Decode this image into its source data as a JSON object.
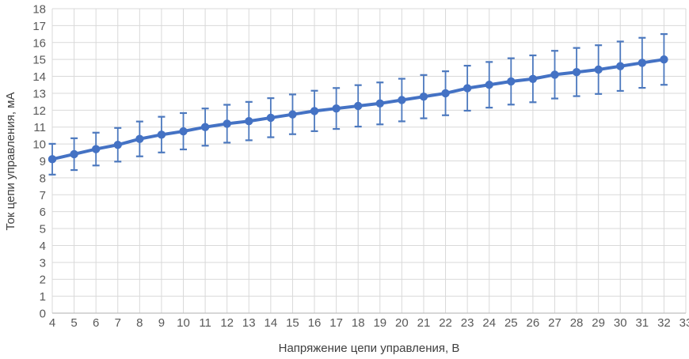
{
  "chart_data": {
    "type": "line",
    "title": "",
    "xlabel": "Напряжение цепи управления, В",
    "ylabel": "Ток цепи управления, мА",
    "x": [
      4,
      5,
      6,
      7,
      8,
      9,
      10,
      11,
      12,
      13,
      14,
      15,
      16,
      17,
      18,
      19,
      20,
      21,
      22,
      23,
      24,
      25,
      26,
      27,
      28,
      29,
      30,
      31,
      32
    ],
    "values": [
      9.1,
      9.4,
      9.7,
      9.95,
      10.3,
      10.55,
      10.75,
      11.0,
      11.2,
      11.35,
      11.55,
      11.75,
      11.95,
      12.1,
      12.25,
      12.4,
      12.6,
      12.8,
      13.0,
      13.3,
      13.5,
      13.7,
      13.85,
      14.1,
      14.25,
      14.4,
      14.6,
      14.8,
      15.0
    ],
    "error_bars": "±10%",
    "error_low": [
      8.19,
      8.46,
      8.73,
      8.96,
      9.27,
      9.5,
      9.68,
      9.9,
      10.08,
      10.22,
      10.4,
      10.58,
      10.76,
      10.89,
      11.03,
      11.16,
      11.34,
      11.52,
      11.7,
      11.97,
      12.15,
      12.33,
      12.47,
      12.69,
      12.83,
      12.96,
      13.14,
      13.32,
      13.5
    ],
    "error_high": [
      10.01,
      10.34,
      10.67,
      10.95,
      11.33,
      11.61,
      11.83,
      12.1,
      12.32,
      12.49,
      12.71,
      12.93,
      13.15,
      13.31,
      13.48,
      13.64,
      13.86,
      14.08,
      14.3,
      14.63,
      14.85,
      15.07,
      15.24,
      15.51,
      15.68,
      15.84,
      16.06,
      16.28,
      16.5
    ],
    "xlim": [
      4,
      33
    ],
    "ylim": [
      0,
      18
    ],
    "x_tick_step": 1,
    "y_tick_step": 1,
    "grid": true,
    "legend": "none",
    "marker": "circle",
    "colors": {
      "series": "#4472C4",
      "error_bar": "#4d79be",
      "grid": "#D9D9D9",
      "axis_line": "#BFBFBF",
      "tick_label": "#595959",
      "axis_title": "#404040",
      "background": "#FFFFFF"
    }
  }
}
